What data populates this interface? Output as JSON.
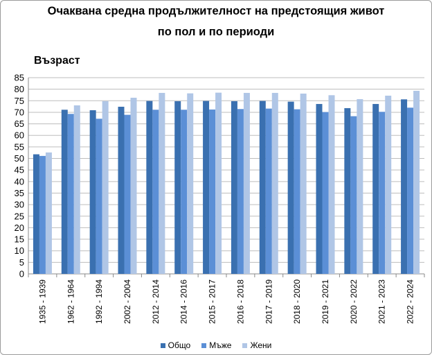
{
  "chart_data": {
    "type": "bar",
    "title": "Очаквана средна продължителност на предстоящия живот",
    "subtitle": "по пол и по периоди",
    "xlabel": "",
    "ylabel": "Възраст",
    "ylim": [
      0,
      85
    ],
    "yticks": [
      0,
      5,
      10,
      15,
      20,
      25,
      30,
      35,
      40,
      45,
      50,
      55,
      60,
      65,
      70,
      75,
      80,
      85
    ],
    "grid": true,
    "legend_position": "bottom",
    "categories": [
      "1935 - 1939",
      "1962 - 1964",
      "1992 - 1994",
      "2002 - 2004",
      "2012 - 2014",
      "2014 - 2016",
      "2015 - 2017",
      "2016 - 2018",
      "2017 - 2019",
      "2018 - 2020",
      "2019 - 2021",
      "2020 - 2022",
      "2021 - 2023",
      "2022 - 2024"
    ],
    "series": [
      {
        "name": "Общо",
        "color": "#3a70b0",
        "values": [
          51.8,
          71.1,
          70.9,
          72.4,
          74.9,
          74.8,
          74.9,
          74.8,
          74.9,
          74.6,
          73.6,
          71.8,
          73.6,
          75.6
        ]
      },
      {
        "name": "Мъже",
        "color": "#5b8fd6",
        "values": [
          51.1,
          69.3,
          67.2,
          68.9,
          71.1,
          71.1,
          71.2,
          71.4,
          71.6,
          71.3,
          70.1,
          68.3,
          70.2,
          72.0
        ]
      },
      {
        "name": "Жени",
        "color": "#b0c6e6",
        "values": [
          52.6,
          73.0,
          74.8,
          76.3,
          78.4,
          78.2,
          78.5,
          78.4,
          78.4,
          78.1,
          77.4,
          75.7,
          77.2,
          79.3
        ]
      }
    ]
  }
}
